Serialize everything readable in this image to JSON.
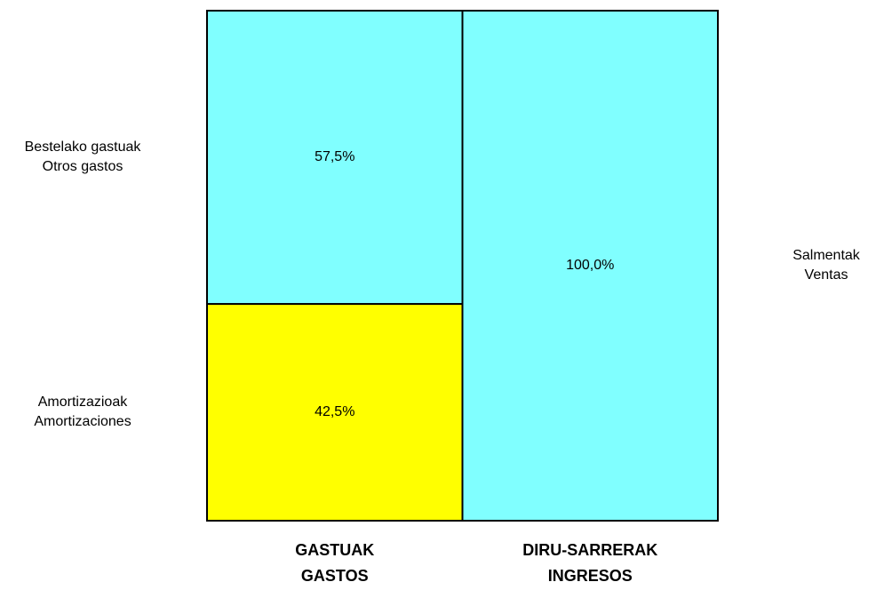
{
  "chart_data": {
    "type": "stacked_bar",
    "categories": [
      [
        "GASTUAK",
        "GASTOS"
      ],
      [
        "DIRU-SARRERAK",
        "INGRESOS"
      ]
    ],
    "series": [
      {
        "name": [
          "Amortizazioak",
          "Amortizaciones"
        ],
        "color": "#ffff00",
        "values": [
          42.5,
          null
        ],
        "value_labels": [
          "42,5%",
          null
        ]
      },
      {
        "name": [
          "Bestelako gastuak",
          "Otros gastos"
        ],
        "color": "#80ffff",
        "values": [
          57.5,
          null
        ],
        "value_labels": [
          "57,5%",
          null
        ]
      },
      {
        "name": [
          "Salmentak",
          "Ventas"
        ],
        "color": "#80ffff",
        "values": [
          null,
          100
        ],
        "value_labels": [
          null,
          "100,0%"
        ]
      }
    ],
    "ylim": [
      0,
      100
    ]
  }
}
